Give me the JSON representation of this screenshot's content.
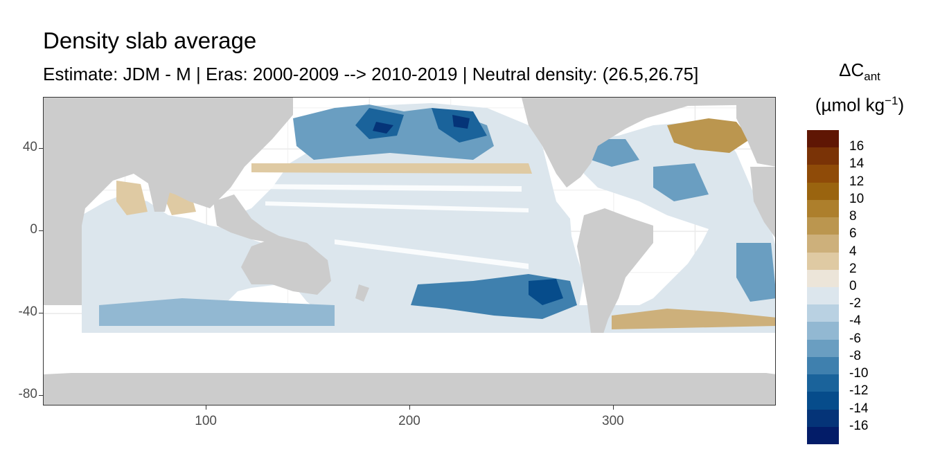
{
  "title": "Density slab average",
  "subtitle": "Estimate: JDM - M | Eras: 2000-2009 --> 2010-2019 | Neutral density: (26.5,26.75]",
  "map": {
    "lon_range": [
      20,
      380
    ],
    "lat_range": [
      -85,
      65
    ],
    "y_ticks": [
      "40",
      "0",
      "-40",
      "-80"
    ],
    "y_tick_values": [
      40,
      0,
      -40,
      -80
    ],
    "x_ticks": [
      "100",
      "200",
      "300"
    ],
    "x_tick_values": [
      100,
      200,
      300
    ],
    "land_color": "#cccccc",
    "no_data_color": "#ffffff",
    "grid_color": "#ebebeb"
  },
  "legend": {
    "title_symbol": "ΔC",
    "title_subscript": "ant",
    "title_unit": "(µmol kg",
    "title_unit_exponent": "−1",
    "title_unit_close": ")",
    "labels": [
      "16",
      "14",
      "12",
      "10",
      "8",
      "6",
      "4",
      "2",
      "0",
      "-2",
      "-4",
      "-6",
      "-8",
      "-10",
      "-12",
      "-14",
      "-16"
    ],
    "colors": [
      "#5f1604",
      "#7a3306",
      "#8f4b08",
      "#9a640f",
      "#ad7f2c",
      "#bb964f",
      "#cdb07b",
      "#dfcaa3",
      "#ece5d9",
      "#dce6ed",
      "#b9d1e2",
      "#92b8d2",
      "#6a9ec1",
      "#3f80ae",
      "#1a639b",
      "#064c8b",
      "#053478",
      "#031c68"
    ]
  }
}
